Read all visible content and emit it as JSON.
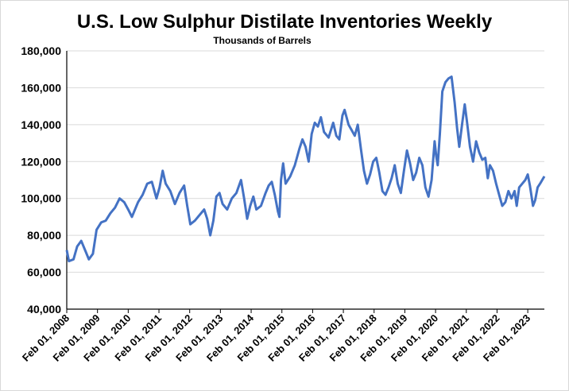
{
  "chart_data": {
    "type": "line",
    "title": "U.S. Low Sulphur Distilate Inventories Weekly",
    "subtitle": "Thousands of Barrels",
    "xlabel": "",
    "ylabel": "",
    "ylim": [
      40000,
      180000
    ],
    "y_ticks": [
      40000,
      60000,
      80000,
      100000,
      120000,
      140000,
      160000,
      180000
    ],
    "y_tick_labels": [
      "40,000",
      "60,000",
      "80,000",
      "100,000",
      "120,000",
      "140,000",
      "160,000",
      "180,000"
    ],
    "x_range": [
      2008.08,
      2023.62
    ],
    "x_ticks": [
      2008.08,
      2009.08,
      2010.08,
      2011.08,
      2012.08,
      2013.08,
      2014.08,
      2015.08,
      2016.08,
      2017.08,
      2018.08,
      2019.08,
      2020.08,
      2021.08,
      2022.08,
      2023.08
    ],
    "x_tick_labels": [
      "Feb 01, 2008",
      "Feb 01, 2009",
      "Feb 01, 2010",
      "Feb 01, 2011",
      "Feb 01, 2012",
      "Feb 01, 2013",
      "Feb 01, 2014",
      "Feb 01, 2015",
      "Feb 01, 2016",
      "Feb 01, 2017",
      "Feb 01, 2018",
      "Feb 01, 2019",
      "Feb 01, 2020",
      "Feb 01, 2021",
      "Feb 01, 2022",
      "Feb 01, 2023"
    ],
    "grid": "horizontal",
    "legend": "none",
    "line_color": "#4472c4",
    "series": [
      {
        "values": [
          [
            2008.08,
            72000
          ],
          [
            2008.15,
            66000
          ],
          [
            2008.3,
            67000
          ],
          [
            2008.42,
            74000
          ],
          [
            2008.55,
            77000
          ],
          [
            2008.7,
            71000
          ],
          [
            2008.8,
            67000
          ],
          [
            2008.93,
            70000
          ],
          [
            2009.05,
            83000
          ],
          [
            2009.2,
            87000
          ],
          [
            2009.35,
            88000
          ],
          [
            2009.5,
            92000
          ],
          [
            2009.65,
            95000
          ],
          [
            2009.8,
            100000
          ],
          [
            2009.95,
            98000
          ],
          [
            2010.08,
            94000
          ],
          [
            2010.2,
            90000
          ],
          [
            2010.4,
            98000
          ],
          [
            2010.55,
            102000
          ],
          [
            2010.7,
            108000
          ],
          [
            2010.85,
            109000
          ],
          [
            2011.0,
            100000
          ],
          [
            2011.1,
            106000
          ],
          [
            2011.2,
            115000
          ],
          [
            2011.3,
            108000
          ],
          [
            2011.45,
            104000
          ],
          [
            2011.6,
            97000
          ],
          [
            2011.75,
            103000
          ],
          [
            2011.9,
            107000
          ],
          [
            2012.0,
            96000
          ],
          [
            2012.1,
            86000
          ],
          [
            2012.25,
            88000
          ],
          [
            2012.4,
            91000
          ],
          [
            2012.55,
            94000
          ],
          [
            2012.65,
            89000
          ],
          [
            2012.75,
            80000
          ],
          [
            2012.85,
            88000
          ],
          [
            2012.95,
            101000
          ],
          [
            2013.05,
            103000
          ],
          [
            2013.15,
            97000
          ],
          [
            2013.3,
            94000
          ],
          [
            2013.45,
            100000
          ],
          [
            2013.6,
            103000
          ],
          [
            2013.75,
            110000
          ],
          [
            2013.85,
            100000
          ],
          [
            2013.95,
            89000
          ],
          [
            2014.05,
            96000
          ],
          [
            2014.15,
            101000
          ],
          [
            2014.25,
            94000
          ],
          [
            2014.4,
            96000
          ],
          [
            2014.55,
            103000
          ],
          [
            2014.65,
            107000
          ],
          [
            2014.75,
            109000
          ],
          [
            2014.85,
            102000
          ],
          [
            2014.95,
            93000
          ],
          [
            2015.0,
            90000
          ],
          [
            2015.05,
            110000
          ],
          [
            2015.12,
            119000
          ],
          [
            2015.2,
            108000
          ],
          [
            2015.35,
            112000
          ],
          [
            2015.5,
            118000
          ],
          [
            2015.65,
            127000
          ],
          [
            2015.75,
            132000
          ],
          [
            2015.85,
            128000
          ],
          [
            2015.95,
            120000
          ],
          [
            2016.05,
            135000
          ],
          [
            2016.15,
            141000
          ],
          [
            2016.25,
            139000
          ],
          [
            2016.35,
            144000
          ],
          [
            2016.45,
            136000
          ],
          [
            2016.6,
            133000
          ],
          [
            2016.75,
            141000
          ],
          [
            2016.85,
            134000
          ],
          [
            2016.95,
            132000
          ],
          [
            2017.05,
            145000
          ],
          [
            2017.12,
            148000
          ],
          [
            2017.25,
            140000
          ],
          [
            2017.35,
            137000
          ],
          [
            2017.45,
            134000
          ],
          [
            2017.55,
            140000
          ],
          [
            2017.65,
            127000
          ],
          [
            2017.75,
            115000
          ],
          [
            2017.85,
            108000
          ],
          [
            2017.95,
            113000
          ],
          [
            2018.05,
            120000
          ],
          [
            2018.15,
            122000
          ],
          [
            2018.25,
            114000
          ],
          [
            2018.35,
            104000
          ],
          [
            2018.45,
            102000
          ],
          [
            2018.55,
            106000
          ],
          [
            2018.65,
            111000
          ],
          [
            2018.75,
            118000
          ],
          [
            2018.85,
            108000
          ],
          [
            2018.95,
            103000
          ],
          [
            2019.05,
            115000
          ],
          [
            2019.15,
            126000
          ],
          [
            2019.25,
            119000
          ],
          [
            2019.35,
            110000
          ],
          [
            2019.45,
            114000
          ],
          [
            2019.55,
            122000
          ],
          [
            2019.65,
            118000
          ],
          [
            2019.75,
            106000
          ],
          [
            2019.85,
            101000
          ],
          [
            2019.95,
            110000
          ],
          [
            2020.05,
            131000
          ],
          [
            2020.1,
            123000
          ],
          [
            2020.15,
            118000
          ],
          [
            2020.22,
            135000
          ],
          [
            2020.3,
            158000
          ],
          [
            2020.4,
            163000
          ],
          [
            2020.5,
            165000
          ],
          [
            2020.6,
            166000
          ],
          [
            2020.7,
            152000
          ],
          [
            2020.78,
            138000
          ],
          [
            2020.85,
            128000
          ],
          [
            2020.95,
            141000
          ],
          [
            2021.03,
            151000
          ],
          [
            2021.1,
            142000
          ],
          [
            2021.2,
            128000
          ],
          [
            2021.3,
            120000
          ],
          [
            2021.4,
            131000
          ],
          [
            2021.5,
            125000
          ],
          [
            2021.6,
            121000
          ],
          [
            2021.7,
            122000
          ],
          [
            2021.78,
            111000
          ],
          [
            2021.85,
            118000
          ],
          [
            2021.95,
            115000
          ],
          [
            2022.05,
            108000
          ],
          [
            2022.15,
            102000
          ],
          [
            2022.25,
            96000
          ],
          [
            2022.35,
            98000
          ],
          [
            2022.45,
            104000
          ],
          [
            2022.55,
            100000
          ],
          [
            2022.65,
            104000
          ],
          [
            2022.72,
            96000
          ],
          [
            2022.8,
            106000
          ],
          [
            2022.9,
            108000
          ],
          [
            2023.0,
            110000
          ],
          [
            2023.08,
            113000
          ],
          [
            2023.15,
            107000
          ],
          [
            2023.25,
            96000
          ],
          [
            2023.32,
            99000
          ],
          [
            2023.4,
            106000
          ],
          [
            2023.48,
            108000
          ],
          [
            2023.55,
            110000
          ],
          [
            2023.62,
            112000
          ]
        ]
      }
    ]
  }
}
